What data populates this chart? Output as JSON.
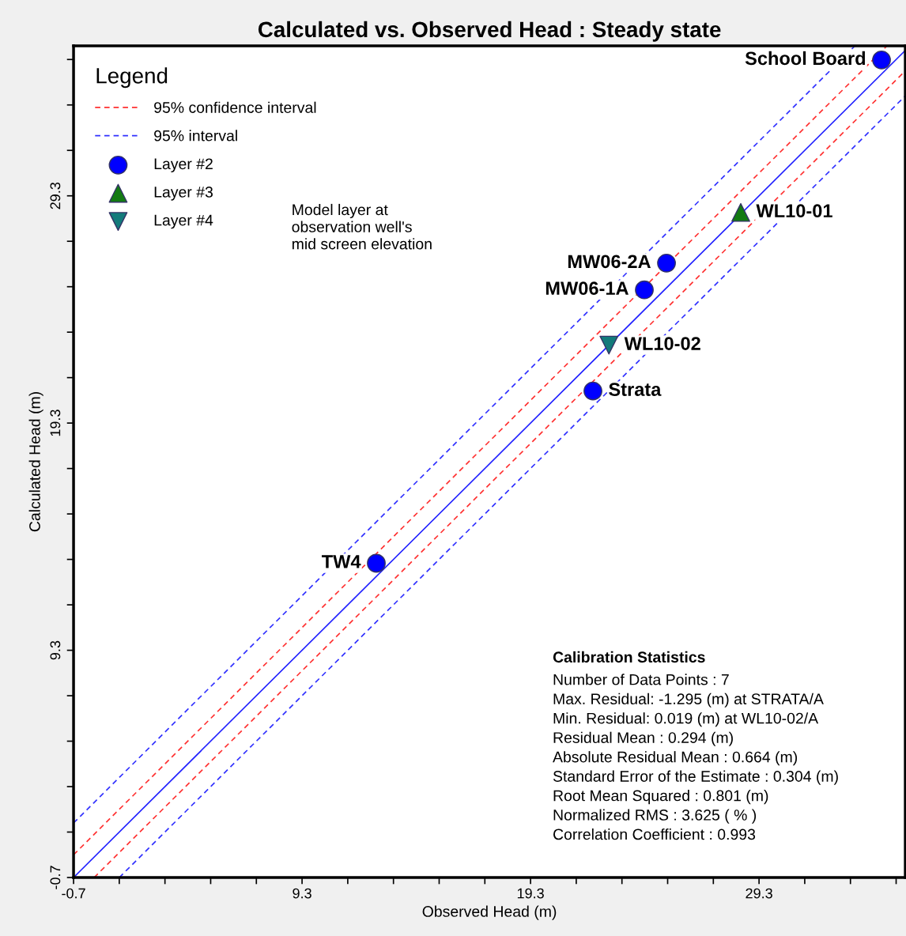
{
  "chart_data": {
    "type": "scatter",
    "title": "Calculated vs. Observed Head : Steady state",
    "xlabel": "Observed Head (m)",
    "ylabel": "Calculated Head (m)",
    "legend_title": "Legend",
    "legend": "top left",
    "grid": false,
    "xlim": [
      -0.7,
      35.7
    ],
    "ylim": [
      -0.7,
      35.9
    ],
    "xticks": [
      -0.7,
      {
        "value": 1.3,
        "label": null
      },
      {
        "value": 3.3,
        "label": null
      },
      {
        "value": 5.3,
        "label": null
      },
      {
        "value": 7.3,
        "label": null
      },
      9.3,
      {
        "value": 11.3,
        "label": null
      },
      {
        "value": 13.3,
        "label": null
      },
      {
        "value": 15.3,
        "label": null
      },
      {
        "value": 17.3,
        "label": null
      },
      19.3,
      {
        "value": 21.3,
        "label": null
      },
      {
        "value": 23.3,
        "label": null
      },
      {
        "value": 25.3,
        "label": null
      },
      {
        "value": 27.3,
        "label": null
      },
      29.3,
      {
        "value": 31.3,
        "label": null
      },
      {
        "value": 33.3,
        "label": null
      },
      {
        "value": 35.3,
        "label": null
      }
    ],
    "yticks": [
      -0.7,
      {
        "value": 1.3,
        "label": null
      },
      {
        "value": 3.3,
        "label": null
      },
      {
        "value": 5.3,
        "label": null
      },
      {
        "value": 7.3,
        "label": null
      },
      9.3,
      {
        "value": 11.3,
        "label": null
      },
      {
        "value": 13.3,
        "label": null
      },
      {
        "value": 15.3,
        "label": null
      },
      {
        "value": 17.3,
        "label": null
      },
      19.3,
      {
        "value": 21.3,
        "label": null
      },
      {
        "value": 23.3,
        "label": null
      },
      {
        "value": 25.3,
        "label": null
      },
      {
        "value": 27.3,
        "label": null
      },
      29.3,
      {
        "value": 31.3,
        "label": null
      },
      {
        "value": 33.3,
        "label": null
      },
      {
        "value": 35.3,
        "label": null
      }
    ],
    "series": [
      {
        "name": "95% confidence interval",
        "type": "line",
        "line_style": "dashed",
        "marker": "none",
        "color": "#ff3030",
        "x": [
          -0.7,
          34.9
        ],
        "values": [
          0.3,
          35.9
        ]
      },
      {
        "type": "line",
        "line_style": "dashed",
        "marker": "none",
        "color": "#ff3030",
        "x": [
          0.2,
          35.7
        ],
        "values": [
          -0.7,
          34.8
        ]
      },
      {
        "name": "95% interval",
        "type": "line",
        "line_style": "dashed",
        "marker": "none",
        "color": "#3030ff",
        "x": [
          -0.7,
          33.5
        ],
        "values": [
          1.7,
          35.9
        ]
      },
      {
        "type": "line",
        "line_style": "dashed",
        "marker": "none",
        "color": "#3030ff",
        "x": [
          1.3,
          35.7
        ],
        "values": [
          -0.7,
          33.7
        ]
      },
      {
        "type": "line",
        "line_style": "solid",
        "marker": "none",
        "color": "#2020ff",
        "x": [
          -0.7,
          35.7
        ],
        "values": [
          -0.7,
          35.7
        ]
      },
      {
        "name": "Layer #2",
        "marker": "circle",
        "color": "#0000ff",
        "x": [
          34.66,
          25.25,
          24.28,
          22.03,
          12.55
        ],
        "values": [
          35.28,
          26.34,
          25.16,
          20.71,
          13.13
        ]
      },
      {
        "name": "Layer #3",
        "marker": "triangle",
        "color": "#137a13",
        "x": [
          28.5
        ],
        "values": [
          28.57
        ]
      },
      {
        "name": "Layer #4",
        "marker": "triangle_down",
        "color": "#137b7b",
        "x": [
          22.73
        ],
        "values": [
          22.73
        ]
      }
    ],
    "annotations": [
      "Model layer at\nobservation well's\nmid screen elevation",
      "Calibration Statistics",
      "Number of Data Points : 7\nMax. Residual: -1.295 (m) at STRATA/A\nMin. Residual: 0.019 (m) at WL10-02/A\nResidual Mean : 0.294 (m)\nAbsolute Residual Mean : 0.664 (m)\nStandard Error of the Estimate : 0.304 (m)\nRoot Mean Squared : 0.801 (m)\nNormalized RMS : 3.625 ( % )\nCorrelation Coefficient : 0.993",
      {
        "text": "School Board",
        "x": 34.66,
        "y": 35.28
      },
      {
        "text": "WL10-01",
        "x": 28.5,
        "y": 28.57
      },
      {
        "text": "MW06-2A",
        "x": 25.25,
        "y": 26.34
      },
      {
        "text": "MW06-1A",
        "x": 24.28,
        "y": 25.16
      },
      {
        "text": "WL10-02",
        "x": 22.73,
        "y": 22.73
      },
      {
        "text": "Strata",
        "x": 22.03,
        "y": 20.71
      },
      {
        "text": "TW4",
        "x": 12.55,
        "y": 13.13
      }
    ]
  }
}
